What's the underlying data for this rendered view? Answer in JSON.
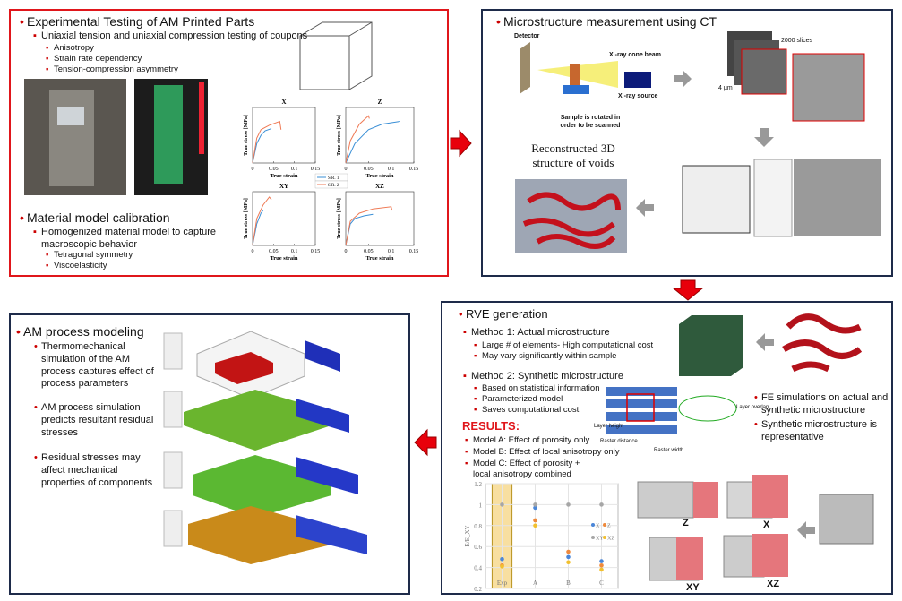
{
  "experimental": {
    "title": "Experimental Testing of AM Printed Parts",
    "bullets": [
      "Uniaxial tension and uniaxial compression testing of coupons"
    ],
    "sub_bullets": [
      "Anisotropy",
      "Strain rate dependency",
      "Tension-compression asymmetry"
    ]
  },
  "calibration": {
    "title": "Material model calibration",
    "bullets": [
      "Homogenized material model to capture macroscopic behavior"
    ],
    "sub_bullets": [
      "Tetragonal symmetry",
      "Viscoelasticity"
    ]
  },
  "stress_strain": {
    "type": "line",
    "xlabel": "True strain",
    "ylabel": "True stress [MPa]",
    "xlim": [
      0,
      0.15
    ],
    "xticks": [
      0,
      0.05,
      0.1,
      0.15
    ],
    "ylim": [
      0,
      1
    ],
    "legend": [
      {
        "name": "S.R. 1",
        "color": "#3a8fd6"
      },
      {
        "name": "S.R. 2",
        "color": "#ef7a55"
      }
    ],
    "plots": [
      {
        "title": "X",
        "series": [
          {
            "x": [
              0,
              0.01,
              0.02,
              0.03,
              0.045
            ],
            "y": [
              0,
              0.35,
              0.5,
              0.58,
              0.62
            ]
          },
          {
            "x": [
              0,
              0.01,
              0.02,
              0.04,
              0.065,
              0.068
            ],
            "y": [
              0,
              0.45,
              0.6,
              0.68,
              0.75,
              0.6
            ]
          }
        ]
      },
      {
        "title": "Z",
        "series": [
          {
            "x": [
              0,
              0.02,
              0.05,
              0.08,
              0.12
            ],
            "y": [
              0,
              0.35,
              0.6,
              0.7,
              0.75
            ]
          },
          {
            "x": [
              0,
              0.01,
              0.03,
              0.05,
              0.052
            ],
            "y": [
              0,
              0.4,
              0.7,
              0.85,
              0.8
            ]
          }
        ]
      },
      {
        "title": "XY",
        "series": [
          {
            "x": [
              0,
              0.01,
              0.02,
              0.025
            ],
            "y": [
              0,
              0.4,
              0.6,
              0.65
            ]
          },
          {
            "x": [
              0,
              0.01,
              0.025,
              0.04,
              0.045
            ],
            "y": [
              0,
              0.5,
              0.75,
              0.9,
              0.85
            ]
          }
        ]
      },
      {
        "title": "XZ",
        "series": [
          {
            "x": [
              0,
              0.01,
              0.02,
              0.04,
              0.06
            ],
            "y": [
              0,
              0.4,
              0.5,
              0.55,
              0.58
            ]
          },
          {
            "x": [
              0,
              0.01,
              0.03,
              0.06,
              0.1,
              0.102
            ],
            "y": [
              0,
              0.45,
              0.6,
              0.68,
              0.72,
              0.65
            ]
          }
        ]
      }
    ]
  },
  "ct": {
    "title": "Microstructure measurement using CT",
    "labels": [
      "Detector",
      "X -ray cone beam",
      "X -ray source",
      "Sample is rotated in order to be scanned",
      "2000 slices",
      "4 µm"
    ],
    "caption": "Reconstructed 3D structure of voids"
  },
  "rve": {
    "title": "RVE generation",
    "methods": [
      {
        "name": "Method 1: Actual microstructure",
        "points": [
          "Large # of elements- High computational cost",
          "May vary significantly within sample"
        ]
      },
      {
        "name": "Method 2: Synthetic microstructure",
        "points": [
          "Based on statistical information",
          "Parameterized model",
          "Saves computational cost"
        ]
      }
    ],
    "results_title": "RESULTS:",
    "results": [
      "Model A: Effect of porosity only",
      "Model B: Effect of local anisotropy only",
      "Model C: Effect of porosity + local anisotropy combined"
    ],
    "raster_labels": [
      "Layer height",
      "Layer overlap",
      "Raster distance",
      "Raster width"
    ],
    "side_bullets": [
      "FE simulations on actual and synthetic microstructure",
      "Synthetic microstructure is representative"
    ],
    "cube_labels": [
      "Z",
      "X",
      "XY",
      "XZ"
    ]
  },
  "results_chart": {
    "type": "scatter",
    "ylabel": "E/E_XY",
    "categories": [
      "Exp",
      "A",
      "B",
      "C"
    ],
    "ylim": [
      0.2,
      1.2
    ],
    "yticks": [
      0.2,
      0.4,
      0.6,
      0.8,
      1,
      1.2
    ],
    "grid": true,
    "series": [
      {
        "name": "X",
        "color": "#4a86d8",
        "values": [
          0.48,
          0.97,
          0.5,
          0.46
        ]
      },
      {
        "name": "Z",
        "color": "#ef8a3c",
        "values": [
          0.42,
          0.85,
          0.55,
          0.42
        ]
      },
      {
        "name": "XY",
        "color": "#a6a6a6",
        "values": [
          1,
          1,
          1,
          1
        ]
      },
      {
        "name": "XZ",
        "color": "#f2c02e",
        "values": [
          0.41,
          0.8,
          0.45,
          0.38
        ]
      }
    ]
  },
  "am": {
    "title": "AM process modeling",
    "bullets": [
      "Thermomechanical simulation of the AM process captures effect of process parameters",
      "AM process simulation predicts resultant residual stresses",
      "Residual stresses may affect mechanical properties of components"
    ]
  }
}
